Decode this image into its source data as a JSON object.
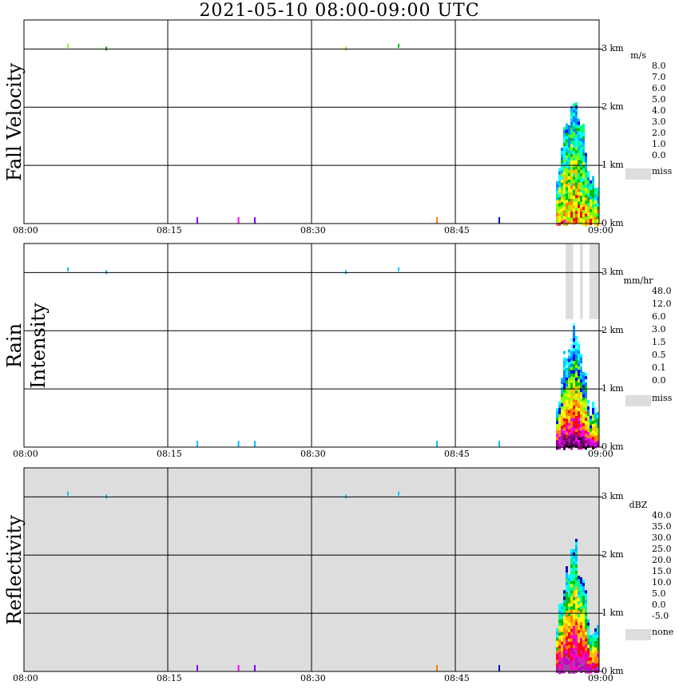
{
  "title": "2021-05-10   08:00-09:00 UTC",
  "colors": {
    "missing": "#dddddd",
    "grid": "#000000",
    "fall_velocity_scale": [
      "#0000ff",
      "#0080ff",
      "#00c0ff",
      "#00ffff",
      "#00ff80",
      "#00c000",
      "#80ff00",
      "#ffff00",
      "#ffc000",
      "#ff8000",
      "#ff0000",
      "#ff00c0",
      "#ff00ff"
    ],
    "rain_scale": [
      "#ffffff",
      "#80ffff",
      "#00ffff",
      "#00c0ff",
      "#0080ff",
      "#0000ff",
      "#00c000",
      "#80ff00",
      "#c0ff00",
      "#ffff00",
      "#ffc000",
      "#ff8000",
      "#ff0000",
      "#ff00ff",
      "#c000c0",
      "#800080",
      "#400040",
      "#000000"
    ],
    "dbz_scale": [
      "#0000c0",
      "#00c0ff",
      "#00ffff",
      "#00ff80",
      "#00c000",
      "#ffff00",
      "#ffc000",
      "#ff8000",
      "#ff0000",
      "#ff00c0",
      "#c000c0",
      "#a040a0"
    ]
  },
  "chart_data": [
    {
      "type": "heatmap",
      "ylabel": "Fall Velocity",
      "x_range": [
        "08:00",
        "09:00"
      ],
      "x_ticks": [
        "08:00",
        "08:15",
        "08:30",
        "08:45",
        "09:00"
      ],
      "y_range_km": [
        0,
        3.5
      ],
      "y_ticks": [
        "0 km",
        "1 km",
        "2 km",
        "3 km"
      ],
      "legend_unit": "m/s",
      "legend_labels": [
        "8.0",
        "7.0",
        "6.0",
        "5.0",
        "4.0",
        "3.0",
        "2.0",
        "1.0",
        "0.0"
      ],
      "legend_missing": "miss",
      "background": "white",
      "echo_region": {
        "start_minute": 55.5,
        "end_minute": 60,
        "top_km": 2.2,
        "peak_value": 8.0
      }
    },
    {
      "type": "heatmap",
      "ylabel": "Rain Intensity",
      "x_range": [
        "08:00",
        "09:00"
      ],
      "x_ticks": [
        "08:00",
        "08:15",
        "08:30",
        "08:45",
        "09:00"
      ],
      "y_range_km": [
        0,
        3.5
      ],
      "y_ticks": [
        "0 km",
        "1 km",
        "2 km",
        "3 km"
      ],
      "legend_unit": "mm/hr",
      "legend_labels": [
        "48.0",
        "12.0",
        "6.0",
        "3.0",
        "1.5",
        "0.5",
        "0.1",
        "0.0"
      ],
      "legend_missing": "miss",
      "background": "white",
      "echo_region": {
        "start_minute": 55.5,
        "end_minute": 60,
        "top_km": 2.1,
        "peak_value": 48.0
      }
    },
    {
      "type": "heatmap",
      "ylabel": "Reflectivity",
      "x_range": [
        "08:00",
        "09:00"
      ],
      "x_ticks": [
        "08:00",
        "08:15",
        "08:30",
        "08:45",
        "09:00"
      ],
      "y_range_km": [
        0,
        3.5
      ],
      "y_ticks": [
        "0 km",
        "1 km",
        "2 km",
        "3 km"
      ],
      "legend_unit": "dBZ",
      "legend_labels": [
        "40.0",
        "35.0",
        "30.0",
        "25.0",
        "20.0",
        "15.0",
        "10.0",
        "5.0",
        "0.0",
        "-5.0"
      ],
      "legend_missing": "none",
      "background": "grey",
      "echo_region": {
        "start_minute": 55.5,
        "end_minute": 60,
        "top_km": 2.2,
        "peak_value": 40.0
      }
    }
  ]
}
